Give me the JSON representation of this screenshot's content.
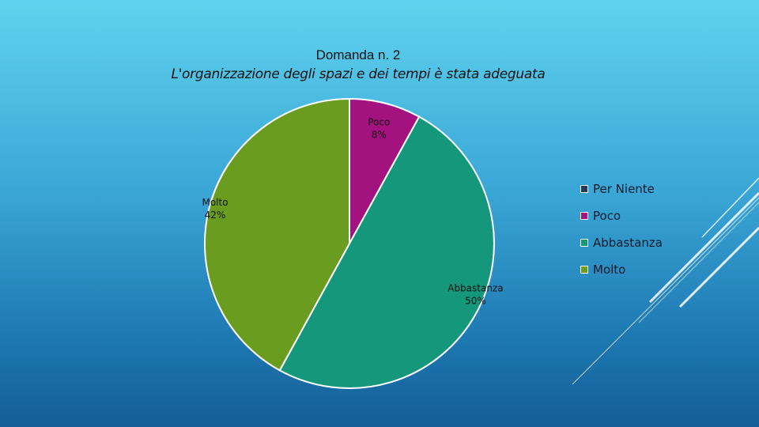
{
  "slide": {
    "title": "Domanda n. 2",
    "subtitle": "L'organizzazione degli spazi e dei tempi è stata adeguata"
  },
  "chart_data": {
    "type": "pie",
    "title": "Domanda n. 2",
    "subtitle": "L'organizzazione degli spazi e dei tempi è stata adeguata",
    "legend_position": "right",
    "start_angle_deg": 0,
    "direction": "clockwise",
    "slices": [
      {
        "name": "Per Niente",
        "value": 0,
        "label": "",
        "percent_label": "",
        "color": "#1f3b5a"
      },
      {
        "name": "Poco",
        "value": 8,
        "label": "Poco",
        "percent_label": "8%",
        "color": "#a3127f"
      },
      {
        "name": "Abbastanza",
        "value": 50,
        "label": "Abbastanza",
        "percent_label": "50%",
        "color": "#14977a"
      },
      {
        "name": "Molto",
        "value": 42,
        "label": "Molto",
        "percent_label": "42%",
        "color": "#6a9c1f"
      }
    ]
  },
  "legend": {
    "items": [
      {
        "label": "Per Niente",
        "color": "#1f3b5a"
      },
      {
        "label": "Poco",
        "color": "#a3127f"
      },
      {
        "label": "Abbastanza",
        "color": "#14977a"
      },
      {
        "label": "Molto",
        "color": "#6a9c1f"
      }
    ]
  }
}
